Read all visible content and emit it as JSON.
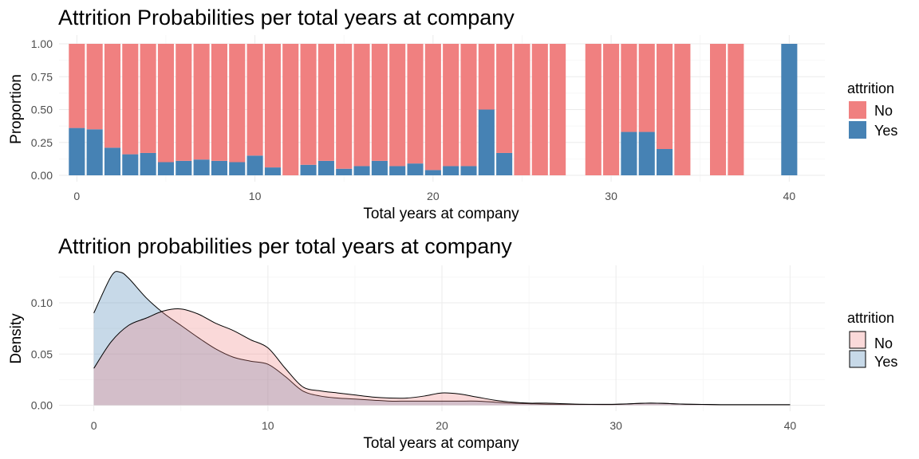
{
  "chart_data": [
    {
      "type": "bar",
      "stacked": true,
      "position": "fill",
      "title": "Attrition Probabilities per total years at company",
      "xlabel": "Total years at company",
      "ylabel": "Proportion",
      "xlim": [
        -1,
        42
      ],
      "ylim": [
        0,
        1
      ],
      "x_ticks": [
        "0",
        "10",
        "20",
        "30",
        "40"
      ],
      "y_ticks": [
        "0.00",
        "0.25",
        "0.50",
        "0.75",
        "1.00"
      ],
      "grid": true,
      "legend": {
        "title": "attrition",
        "placement": "right",
        "entries": [
          "No",
          "Yes"
        ]
      },
      "colors": {
        "No": "#F08080",
        "Yes": "#4682B4"
      },
      "x": [
        0,
        1,
        2,
        3,
        4,
        5,
        6,
        7,
        8,
        9,
        10,
        11,
        12,
        13,
        14,
        15,
        16,
        17,
        18,
        19,
        20,
        21,
        22,
        23,
        24,
        25,
        26,
        27,
        29,
        30,
        31,
        32,
        33,
        34,
        36,
        37,
        40
      ],
      "series": [
        {
          "name": "Yes",
          "values": [
            0.36,
            0.35,
            0.21,
            0.16,
            0.17,
            0.1,
            0.11,
            0.12,
            0.11,
            0.1,
            0.15,
            0.06,
            0.0,
            0.08,
            0.11,
            0.05,
            0.07,
            0.11,
            0.07,
            0.09,
            0.04,
            0.07,
            0.07,
            0.5,
            0.17,
            0.0,
            0.0,
            0.0,
            0.0,
            0.0,
            0.33,
            0.33,
            0.2,
            0.0,
            0.0,
            0.0,
            1.0
          ]
        },
        {
          "name": "No",
          "values": [
            0.64,
            0.65,
            0.79,
            0.84,
            0.83,
            0.9,
            0.89,
            0.88,
            0.89,
            0.9,
            0.85,
            0.94,
            1.0,
            0.92,
            0.89,
            0.95,
            0.93,
            0.89,
            0.93,
            0.91,
            0.96,
            0.93,
            0.93,
            0.5,
            0.83,
            1.0,
            1.0,
            1.0,
            1.0,
            1.0,
            0.67,
            0.67,
            0.8,
            1.0,
            1.0,
            1.0,
            0.0
          ]
        }
      ]
    },
    {
      "type": "area",
      "subtype": "density",
      "title": "Attrition probabilities per total years at company",
      "xlabel": "Total years at company",
      "ylabel": "Density",
      "xlim": [
        -2,
        42
      ],
      "ylim": [
        0,
        0.135
      ],
      "x_ticks": [
        "0",
        "10",
        "20",
        "30",
        "40"
      ],
      "y_ticks": [
        "0.00",
        "0.05",
        "0.10"
      ],
      "grid": true,
      "legend": {
        "title": "attrition",
        "placement": "right",
        "entries": [
          "No",
          "Yes"
        ]
      },
      "colors": {
        "No": "#F08080",
        "Yes": "#4682B4"
      },
      "series": [
        {
          "name": "No",
          "x": [
            0,
            1,
            2,
            3,
            4,
            5,
            6,
            7,
            8,
            9,
            10,
            11,
            12,
            13,
            14,
            15,
            16,
            17,
            18,
            19,
            20,
            21,
            22,
            23,
            24,
            25,
            26,
            28,
            30,
            32,
            34,
            36,
            38,
            40
          ],
          "values": [
            0.036,
            0.062,
            0.078,
            0.085,
            0.092,
            0.094,
            0.089,
            0.08,
            0.073,
            0.064,
            0.056,
            0.036,
            0.018,
            0.014,
            0.012,
            0.01,
            0.008,
            0.007,
            0.007,
            0.009,
            0.012,
            0.011,
            0.008,
            0.005,
            0.003,
            0.002,
            0.002,
            0.001,
            0.001,
            0.002,
            0.001,
            0.0005,
            0.0005,
            0.0005
          ]
        },
        {
          "name": "Yes",
          "x": [
            0,
            1,
            1.5,
            2,
            3,
            4,
            5,
            6,
            7,
            8,
            9,
            10,
            11,
            12,
            13,
            14,
            15,
            16,
            17,
            18,
            19,
            20,
            21,
            22,
            23,
            24,
            25,
            26,
            28,
            30,
            32,
            34,
            36,
            38,
            40
          ],
          "values": [
            0.09,
            0.126,
            0.13,
            0.124,
            0.105,
            0.09,
            0.078,
            0.066,
            0.055,
            0.047,
            0.043,
            0.04,
            0.028,
            0.014,
            0.009,
            0.007,
            0.006,
            0.005,
            0.004,
            0.004,
            0.004,
            0.004,
            0.004,
            0.004,
            0.003,
            0.002,
            0.0015,
            0.001,
            0.0008,
            0.0008,
            0.002,
            0.001,
            0.0005,
            0.0005,
            0.0005
          ]
        }
      ]
    }
  ]
}
